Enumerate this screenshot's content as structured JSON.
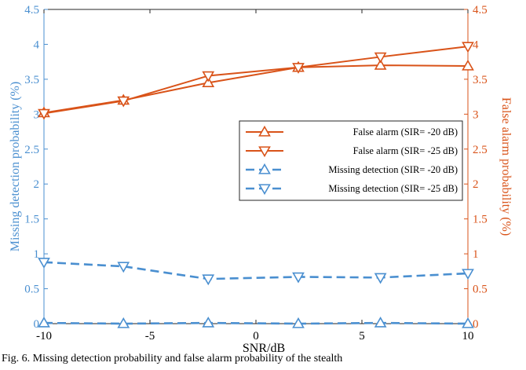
{
  "chart_data": {
    "type": "line",
    "xlabel": "SNR/dB",
    "ylabel_left": "Missing detection probability (%)",
    "ylabel_right": "False alarm probability (%)",
    "xlim": [
      -10,
      10
    ],
    "xticks": [
      -10,
      -5,
      0,
      5,
      10
    ],
    "ylim": [
      0,
      4.5
    ],
    "yticks": [
      0,
      0.5,
      1,
      1.5,
      2,
      2.5,
      3,
      3.5,
      4,
      4.5
    ],
    "grid": false,
    "legend_position": "right",
    "colors": {
      "false_alarm": "#d95319",
      "missing_detection": "#4a8fd0"
    },
    "x": [
      -10,
      -6.25,
      -2.25,
      2,
      5.875,
      10
    ],
    "series": [
      {
        "name": "False alarm (SIR= -20 dB)",
        "axis": "right",
        "marker": "triangle-up",
        "linestyle": "solid",
        "values": [
          3.02,
          3.2,
          3.45,
          3.67,
          3.7,
          3.69
        ]
      },
      {
        "name": "False alarm (SIR= -25 dB)",
        "axis": "right",
        "marker": "triangle-down",
        "linestyle": "solid",
        "values": [
          3.01,
          3.19,
          3.55,
          3.67,
          3.82,
          3.97
        ]
      },
      {
        "name": "Missing detection (SIR= -20 dB)",
        "axis": "left",
        "marker": "triangle-up",
        "linestyle": "dashed",
        "values": [
          0.01,
          0.0,
          0.01,
          0.0,
          0.01,
          0.0
        ]
      },
      {
        "name": "Missing detection (SIR= -25 dB)",
        "axis": "left",
        "marker": "triangle-down",
        "linestyle": "dashed",
        "values": [
          0.88,
          0.82,
          0.64,
          0.67,
          0.66,
          0.72
        ]
      }
    ]
  },
  "caption": "Fig. 6.  Missing detection probability and false alarm probability of the stealth"
}
